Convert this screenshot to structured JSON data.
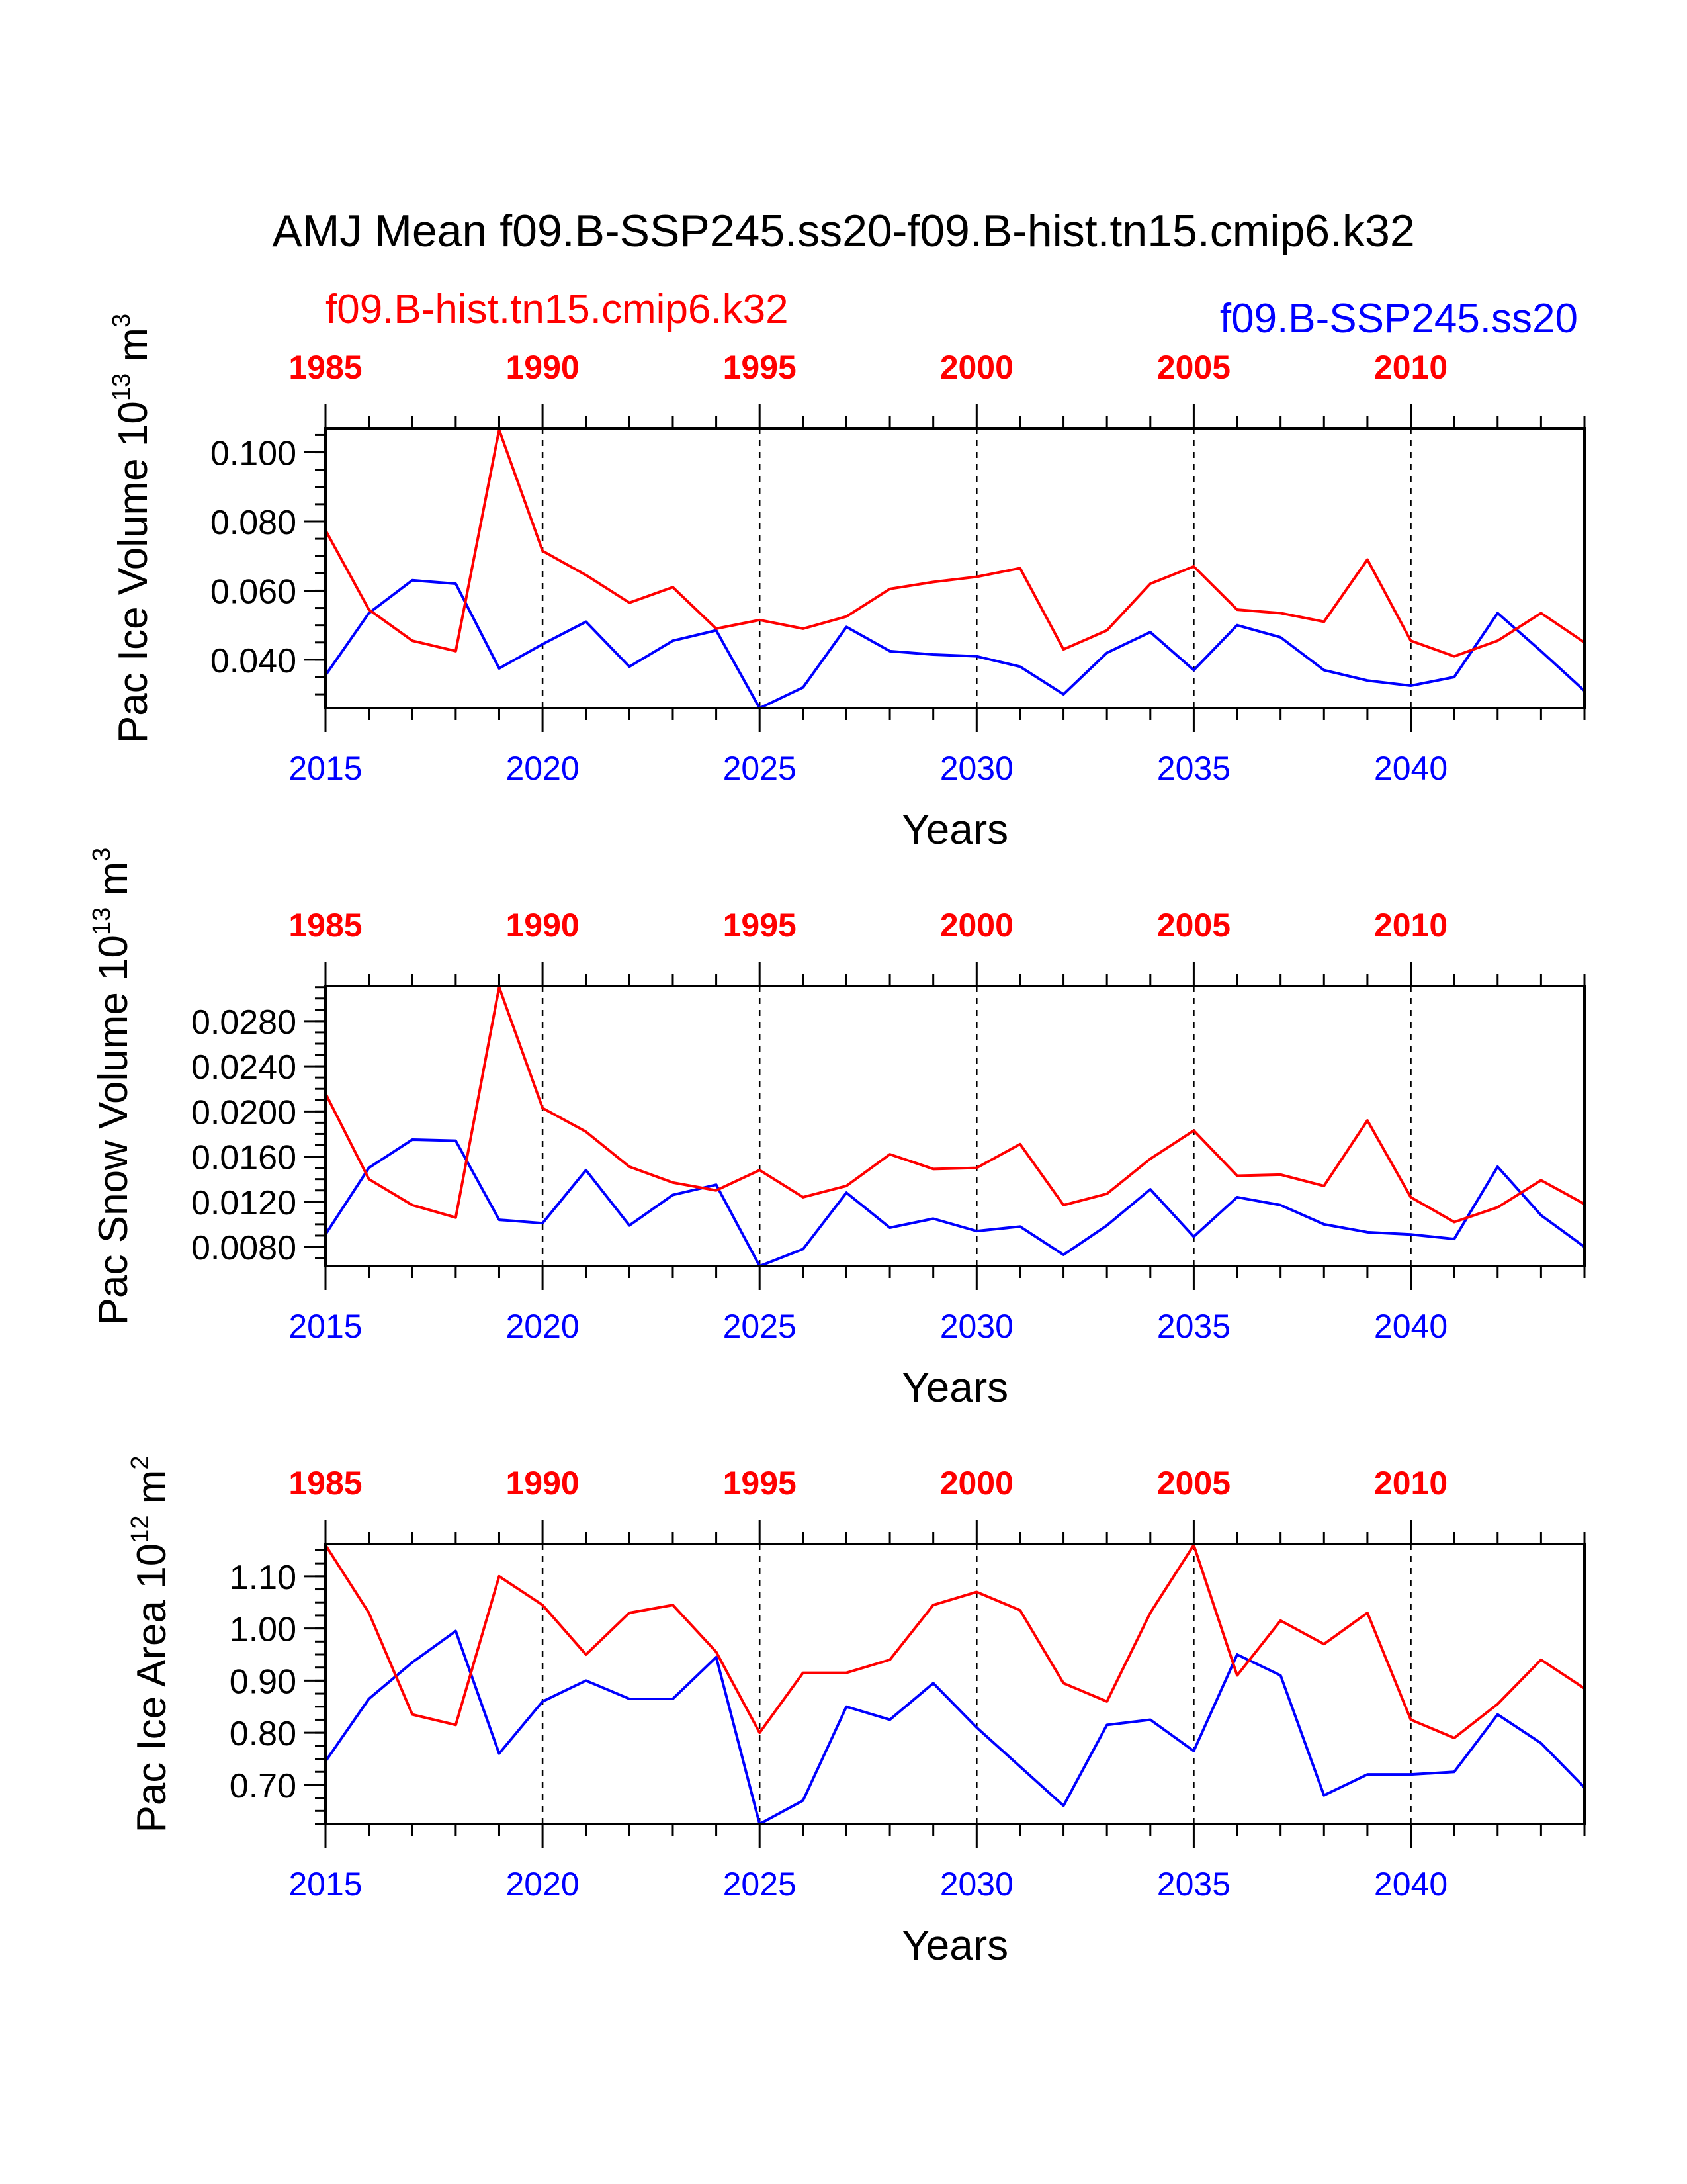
{
  "figure": {
    "title": "AMJ Mean f09.B-SSP245.ss20-f09.B-hist.tn15.cmip6.k32",
    "legend_left": "f09.B-hist.tn15.cmip6.k32",
    "legend_right": "f09.B-SSP245.ss20"
  },
  "colors": {
    "hist": "#ff0000",
    "ssp": "#0000ff",
    "axis": "#000000"
  },
  "chart_data": [
    {
      "type": "line",
      "ylabel": "Pac Ice Volume 10",
      "ylabel_sup": "13",
      "ylabel_unit": "m",
      "ylabel_unit_sup": "3",
      "xlabel": "Years",
      "xlim": [
        2015,
        2044
      ],
      "ylim": [
        0.026,
        0.107
      ],
      "yticks": [
        "0.040",
        "0.060",
        "0.080",
        "0.100"
      ],
      "xticks_bottom": [
        "2015",
        "2020",
        "2025",
        "2030",
        "2035",
        "2040"
      ],
      "xticks_top": [
        "1985",
        "1990",
        "1995",
        "2000",
        "2005",
        "2010"
      ],
      "grid": "dashed vertical at labeled years",
      "x": [
        2015,
        2016,
        2017,
        2018,
        2019,
        2020,
        2021,
        2022,
        2023,
        2024,
        2025,
        2026,
        2027,
        2028,
        2029,
        2030,
        2031,
        2032,
        2033,
        2034,
        2035,
        2036,
        2037,
        2038,
        2039,
        2040,
        2041,
        2042,
        2043,
        2044
      ],
      "series": [
        {
          "name": "f09.B-hist.tn15.cmip6.k32",
          "values": [
            0.0775,
            0.0545,
            0.0455,
            0.0425,
            0.1065,
            0.0715,
            0.0645,
            0.0565,
            0.061,
            0.049,
            0.0515,
            0.049,
            0.0525,
            0.0605,
            0.0625,
            0.064,
            0.0665,
            0.043,
            0.0485,
            0.062,
            0.067,
            0.0545,
            0.0535,
            0.051,
            0.069,
            0.0455,
            0.041,
            0.0455,
            0.0535,
            0.045
          ]
        },
        {
          "name": "f09.B-SSP245.ss20",
          "values": [
            0.0355,
            0.0535,
            0.063,
            0.062,
            0.0375,
            0.0445,
            0.051,
            0.038,
            0.0455,
            0.0485,
            0.026,
            0.032,
            0.0495,
            0.0425,
            0.0415,
            0.041,
            0.038,
            0.03,
            0.042,
            0.048,
            0.037,
            0.05,
            0.0465,
            0.037,
            0.034,
            0.0325,
            0.035,
            0.0535,
            0.0425,
            0.031
          ]
        }
      ]
    },
    {
      "type": "line",
      "ylabel": "Pac Snow Volume 10",
      "ylabel_sup": "13",
      "ylabel_unit": "m",
      "ylabel_unit_sup": "3",
      "xlabel": "Years",
      "xlim": [
        2015,
        2044
      ],
      "ylim": [
        0.0063,
        0.0311
      ],
      "yticks": [
        "0.0080",
        "0.0120",
        "0.0160",
        "0.0200",
        "0.0240",
        "0.0280"
      ],
      "xticks_bottom": [
        "2015",
        "2020",
        "2025",
        "2030",
        "2035",
        "2040"
      ],
      "xticks_top": [
        "1985",
        "1990",
        "1995",
        "2000",
        "2005",
        "2010"
      ],
      "grid": "dashed vertical at labeled years",
      "x": [
        2015,
        2016,
        2017,
        2018,
        2019,
        2020,
        2021,
        2022,
        2023,
        2024,
        2025,
        2026,
        2027,
        2028,
        2029,
        2030,
        2031,
        2032,
        2033,
        2034,
        2035,
        2036,
        2037,
        2038,
        2039,
        2040,
        2041,
        2042,
        2043,
        2044
      ],
      "series": [
        {
          "name": "f09.B-hist.tn15.cmip6.k32",
          "values": [
            0.0216,
            0.014,
            0.0117,
            0.0106,
            0.031,
            0.0203,
            0.0182,
            0.0151,
            0.0137,
            0.013,
            0.0148,
            0.0124,
            0.0134,
            0.0162,
            0.0149,
            0.015,
            0.0171,
            0.0117,
            0.0127,
            0.0158,
            0.0183,
            0.0143,
            0.0144,
            0.0134,
            0.0192,
            0.0124,
            0.0102,
            0.0115,
            0.0139,
            0.0118
          ]
        },
        {
          "name": "f09.B-SSP245.ss20",
          "values": [
            0.0091,
            0.015,
            0.0175,
            0.0174,
            0.0104,
            0.0101,
            0.0148,
            0.0099,
            0.0126,
            0.0135,
            0.0063,
            0.0078,
            0.0128,
            0.0097,
            0.0105,
            0.0094,
            0.0098,
            0.0073,
            0.0099,
            0.0131,
            0.0089,
            0.0124,
            0.0117,
            0.01,
            0.0093,
            0.0091,
            0.0087,
            0.0151,
            0.0108,
            0.008
          ]
        }
      ]
    },
    {
      "type": "line",
      "ylabel": "Pac Ice Area 10",
      "ylabel_sup": "12",
      "ylabel_unit": "m",
      "ylabel_unit_sup": "2",
      "xlabel": "Years",
      "xlim": [
        2015,
        2044
      ],
      "ylim": [
        0.625,
        1.162
      ],
      "yticks": [
        "0.70",
        "0.80",
        "0.90",
        "1.00",
        "1.10"
      ],
      "xticks_bottom": [
        "2015",
        "2020",
        "2025",
        "2030",
        "2035",
        "2040"
      ],
      "xticks_top": [
        "1985",
        "1990",
        "1995",
        "2000",
        "2005",
        "2010"
      ],
      "grid": "dashed vertical at labeled years",
      "x": [
        2015,
        2016,
        2017,
        2018,
        2019,
        2020,
        2021,
        2022,
        2023,
        2024,
        2025,
        2026,
        2027,
        2028,
        2029,
        2030,
        2031,
        2032,
        2033,
        2034,
        2035,
        2036,
        2037,
        2038,
        2039,
        2040,
        2041,
        2042,
        2043,
        2044
      ],
      "series": [
        {
          "name": "f09.B-hist.tn15.cmip6.k32",
          "values": [
            1.16,
            1.03,
            0.835,
            0.815,
            1.1,
            1.045,
            0.95,
            1.03,
            1.045,
            0.955,
            0.8,
            0.915,
            0.915,
            0.94,
            1.045,
            1.07,
            1.035,
            0.895,
            0.86,
            1.03,
            1.16,
            0.91,
            1.015,
            0.97,
            1.03,
            0.825,
            0.79,
            0.855,
            0.94,
            0.885
          ]
        },
        {
          "name": "f09.B-SSP245.ss20",
          "values": [
            0.745,
            0.865,
            0.935,
            0.995,
            0.76,
            0.86,
            0.9,
            0.865,
            0.865,
            0.945,
            0.625,
            0.67,
            0.85,
            0.825,
            0.895,
            0.81,
            0.735,
            0.66,
            0.815,
            0.825,
            0.765,
            0.95,
            0.91,
            0.68,
            0.72,
            0.72,
            0.725,
            0.835,
            0.78,
            0.695
          ]
        }
      ]
    }
  ]
}
